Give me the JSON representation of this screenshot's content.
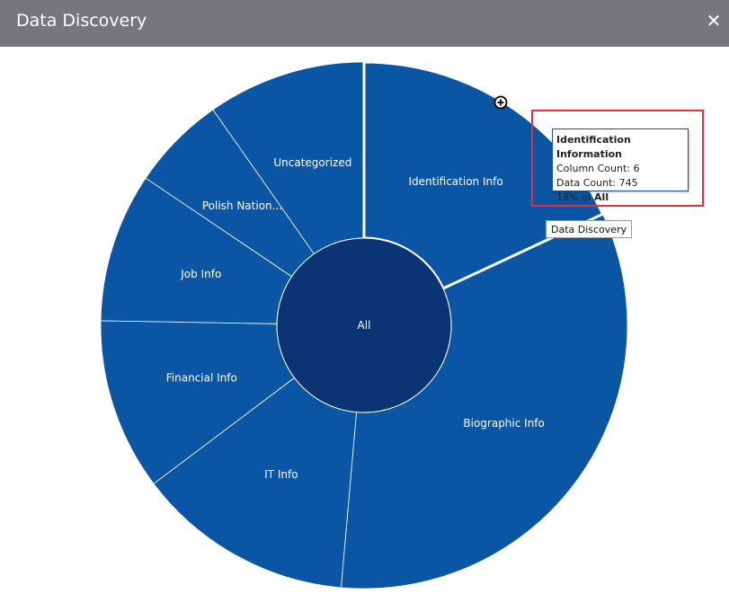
{
  "window": {
    "title": "Data Discovery"
  },
  "colors": {
    "slice": "#0a56a4",
    "center": "#0b3475",
    "titlebar": "#76777b",
    "highlight": "#e0323c"
  },
  "chart_data": {
    "type": "pie",
    "center_label": "All",
    "slices": [
      {
        "label": "Identification Info",
        "start_deg": 0,
        "end_deg": 65
      },
      {
        "label": "Biographic Info",
        "start_deg": 65,
        "end_deg": 185
      },
      {
        "label": "IT Info",
        "start_deg": 185,
        "end_deg": 233
      },
      {
        "label": "Financial Info",
        "start_deg": 233,
        "end_deg": 271
      },
      {
        "label": "Job Info",
        "start_deg": 271,
        "end_deg": 304
      },
      {
        "label": "Polish Nation...",
        "start_deg": 304,
        "end_deg": 325
      },
      {
        "label": "Uncategorized",
        "start_deg": 325,
        "end_deg": 360
      }
    ]
  },
  "tooltip": {
    "title": "Identification Information",
    "column_count": "Column Count: 6",
    "data_count": "Data Count: 745",
    "percent_prefix": "18% of ",
    "percent_of": "All"
  },
  "secondary_tooltip": "Data Discovery",
  "icons": {
    "close": "close-icon",
    "zoom": "zoom-in-cursor-icon"
  }
}
